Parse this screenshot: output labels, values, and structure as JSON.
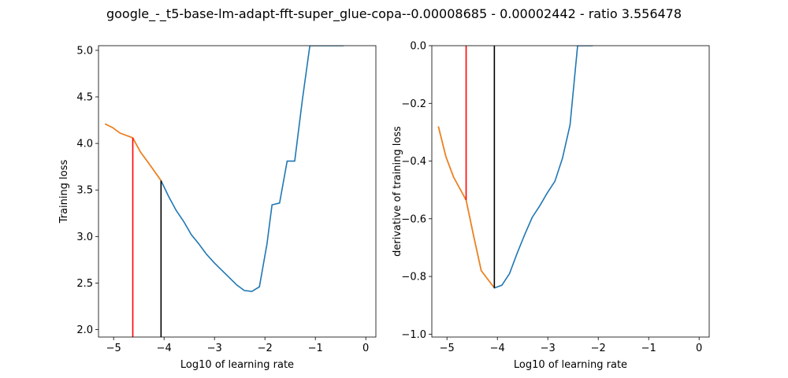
{
  "figure": {
    "title": "google_-_t5-base-lm-adapt-fft-super_glue-copa--0.00008685 - 0.00002442 - ratio 3.556478"
  },
  "colors": {
    "series_main": "#1f77b4",
    "series_highlight": "#ff7f0e",
    "marker_red": "#ff0000",
    "marker_black": "#000000"
  },
  "chart_data": [
    {
      "type": "line",
      "title": "",
      "xlabel": "Log10 of learning rate",
      "ylabel": "Training loss",
      "xlim": [
        -5.3,
        0.2
      ],
      "ylim": [
        1.92,
        5.05
      ],
      "x_ticks": [
        -5,
        -4,
        -3,
        -2,
        -1,
        0
      ],
      "x_tick_labels": [
        "−5",
        "−4",
        "−3",
        "−2",
        "−1",
        "0"
      ],
      "y_ticks": [
        2.0,
        2.5,
        3.0,
        3.5,
        4.0,
        4.5,
        5.0
      ],
      "y_tick_labels": [
        "2.0",
        "2.5",
        "3.0",
        "3.5",
        "4.0",
        "4.5",
        "5.0"
      ],
      "series": [
        {
          "x": [
            -5.17,
            -5.02,
            -4.87,
            -4.62,
            -4.47,
            -4.32,
            -4.06,
            -3.91,
            -3.76,
            -3.61,
            -3.46,
            -3.31,
            -3.16,
            -3.01,
            -2.86,
            -2.71,
            -2.56,
            -2.41,
            -2.26,
            -2.11,
            -1.96,
            -1.86,
            -1.71,
            -1.56,
            -1.41,
            -1.26,
            -1.11,
            -0.96,
            -0.81,
            -0.66,
            -0.51,
            -0.44
          ],
          "y": [
            4.21,
            4.17,
            4.11,
            4.06,
            3.91,
            3.8,
            3.6,
            3.43,
            3.28,
            3.16,
            3.02,
            2.92,
            2.81,
            2.72,
            2.64,
            2.56,
            2.48,
            2.42,
            2.41,
            2.46,
            2.92,
            3.34,
            3.36,
            3.81,
            3.81,
            4.46,
            5.05,
            5.05,
            5.05,
            5.05,
            5.05,
            5.05
          ]
        },
        {
          "x": [
            -5.17,
            -5.02,
            -4.87,
            -4.62,
            -4.47,
            -4.32,
            -4.06
          ],
          "y": [
            4.21,
            4.17,
            4.11,
            4.06,
            3.91,
            3.8,
            3.6
          ]
        }
      ],
      "vlines": [
        {
          "x": -4.62,
          "y_from": 1.92,
          "y_to": 4.06,
          "color": "red"
        },
        {
          "x": -4.06,
          "y_from": 1.92,
          "y_to": 3.6,
          "color": "black"
        }
      ]
    },
    {
      "type": "line",
      "title": "",
      "xlabel": "Log10 of learning rate",
      "ylabel": "derivative of training loss",
      "xlim": [
        -5.3,
        0.2
      ],
      "ylim": [
        -1.01,
        0.0
      ],
      "x_ticks": [
        -5,
        -4,
        -3,
        -2,
        -1,
        0
      ],
      "x_tick_labels": [
        "−5",
        "−4",
        "−3",
        "−2",
        "−1",
        "0"
      ],
      "y_ticks": [
        -1.0,
        -0.8,
        -0.6,
        -0.4,
        -0.2,
        0.0
      ],
      "y_tick_labels": [
        "−1.0",
        "−0.8",
        "−0.6",
        "−0.4",
        "−0.2",
        "0.0"
      ],
      "series": [
        {
          "x": [
            -5.17,
            -5.02,
            -4.87,
            -4.62,
            -4.47,
            -4.32,
            -4.06,
            -3.91,
            -3.76,
            -3.61,
            -3.46,
            -3.31,
            -3.16,
            -3.01,
            -2.86,
            -2.71,
            -2.56,
            -2.41,
            -2.26,
            -2.11
          ],
          "y": [
            -0.28,
            -0.385,
            -0.455,
            -0.535,
            -0.66,
            -0.78,
            -0.84,
            -0.83,
            -0.79,
            -0.72,
            -0.655,
            -0.595,
            -0.555,
            -0.51,
            -0.47,
            -0.39,
            -0.275,
            0.0,
            0.0,
            0.0
          ]
        },
        {
          "x": [
            -5.17,
            -5.02,
            -4.87,
            -4.62,
            -4.47,
            -4.32,
            -4.06
          ],
          "y": [
            -0.28,
            -0.385,
            -0.455,
            -0.535,
            -0.66,
            -0.78,
            -0.84
          ]
        }
      ],
      "vlines": [
        {
          "x": -4.62,
          "y_from": 0.0,
          "y_to": -0.535,
          "color": "red"
        },
        {
          "x": -4.06,
          "y_from": 0.0,
          "y_to": -0.84,
          "color": "black"
        }
      ]
    }
  ]
}
